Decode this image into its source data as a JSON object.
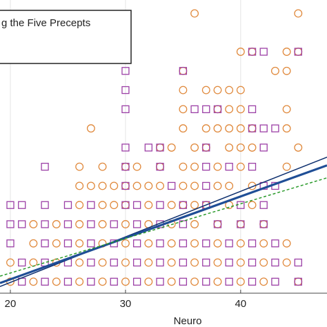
{
  "chart_data": {
    "type": "scatter",
    "legend_text": "g the Five Precepts",
    "x_label": "Neuro",
    "xlim": [
      19.1,
      47.5
    ],
    "xticks": [
      20,
      30,
      40
    ],
    "ylim": [
      -0.6,
      14.7
    ],
    "grid": true,
    "series": [
      {
        "color": "#e0893c",
        "marker": "circle",
        "x": [
          36,
          45,
          40,
          41,
          44,
          45,
          35,
          43,
          44,
          35,
          37,
          38,
          39,
          40,
          35,
          38,
          39,
          40,
          44,
          27,
          35,
          37,
          38,
          39,
          40,
          41,
          44,
          33,
          34,
          36,
          37,
          39,
          40,
          41,
          45,
          26,
          28,
          30,
          31,
          33,
          35,
          36,
          38,
          40,
          44,
          26,
          27,
          28,
          29,
          30,
          31,
          32,
          33,
          35,
          36,
          38,
          39,
          41,
          26,
          28,
          29,
          30,
          32,
          34,
          35,
          36,
          37,
          39,
          41,
          22,
          24,
          26,
          28,
          30,
          32,
          34,
          36,
          38,
          40,
          42,
          22,
          24,
          26,
          28,
          30,
          32,
          34,
          36,
          38,
          40,
          42,
          44,
          20,
          22,
          24,
          26,
          28,
          30,
          32,
          34,
          36,
          38,
          40,
          42,
          44,
          20,
          22,
          24,
          26,
          28,
          30,
          32,
          34,
          36,
          38,
          40,
          42,
          45
        ],
        "values": [
          14,
          14,
          12,
          12,
          12,
          12,
          11,
          11,
          11,
          10,
          10,
          10,
          10,
          10,
          9,
          9,
          9,
          9,
          9,
          8,
          8,
          8,
          8,
          8,
          8,
          8,
          8,
          7,
          7,
          7,
          7,
          7,
          7,
          7,
          7,
          6,
          6,
          6,
          6,
          6,
          6,
          6,
          6,
          6,
          6,
          5,
          5,
          5,
          5,
          5,
          5,
          5,
          5,
          5,
          5,
          5,
          5,
          5,
          4,
          4,
          4,
          4,
          4,
          4,
          4,
          4,
          4,
          4,
          4,
          3,
          3,
          3,
          3,
          3,
          3,
          3,
          3,
          3,
          3,
          3,
          2,
          2,
          2,
          2,
          2,
          2,
          2,
          2,
          2,
          2,
          2,
          2,
          1,
          1,
          1,
          1,
          1,
          1,
          1,
          1,
          1,
          1,
          1,
          1,
          1,
          0,
          0,
          0,
          0,
          0,
          0,
          0,
          0,
          0,
          0,
          0,
          0,
          0
        ]
      },
      {
        "color": "#9b3fa6",
        "marker": "square",
        "x": [
          41,
          42,
          45,
          30,
          35,
          30,
          30,
          36,
          37,
          38,
          41,
          41,
          42,
          43,
          30,
          32,
          33,
          37,
          42,
          23,
          30,
          33,
          37,
          39,
          41,
          30,
          34,
          37,
          42,
          43,
          20,
          21,
          23,
          25,
          27,
          30,
          31,
          33,
          35,
          37,
          40,
          42,
          20,
          21,
          23,
          25,
          27,
          29,
          31,
          33,
          35,
          38,
          40,
          42,
          20,
          23,
          25,
          27,
          29,
          31,
          33,
          35,
          37,
          39,
          41,
          43,
          21,
          23,
          25,
          27,
          29,
          31,
          33,
          35,
          37,
          39,
          41,
          43,
          45,
          21,
          23,
          25,
          27,
          29,
          31,
          33,
          35,
          37,
          39,
          41,
          43,
          45
        ],
        "values": [
          12,
          12,
          12,
          11,
          11,
          10,
          9,
          9,
          9,
          9,
          9,
          8,
          8,
          8,
          7,
          7,
          7,
          7,
          7,
          6,
          6,
          6,
          6,
          6,
          6,
          5,
          5,
          5,
          5,
          5,
          4,
          4,
          4,
          4,
          4,
          4,
          4,
          4,
          4,
          4,
          4,
          4,
          3,
          3,
          3,
          3,
          3,
          3,
          3,
          3,
          3,
          3,
          3,
          3,
          2,
          2,
          2,
          2,
          2,
          2,
          2,
          2,
          2,
          2,
          2,
          2,
          1,
          1,
          1,
          1,
          1,
          1,
          1,
          1,
          1,
          1,
          1,
          1,
          1,
          0,
          0,
          0,
          0,
          0,
          0,
          0,
          0,
          0,
          0,
          0,
          0,
          0
        ]
      },
      {
        "color": "#0d2f6e",
        "marker": "line",
        "width": 1.5,
        "x": [
          19.1,
          47.5
        ],
        "values": [
          -0.25,
          6.5
        ]
      },
      {
        "color": "#1f4e96",
        "marker": "line",
        "width": 3.2,
        "x": [
          19.1,
          47.5
        ],
        "values": [
          -0.07,
          6.07
        ]
      },
      {
        "color": "#2a9a2a",
        "marker": "line",
        "width": 1.5,
        "dashed": true,
        "x": [
          19.1,
          47.5
        ],
        "values": [
          0.29,
          5.42
        ]
      }
    ]
  }
}
